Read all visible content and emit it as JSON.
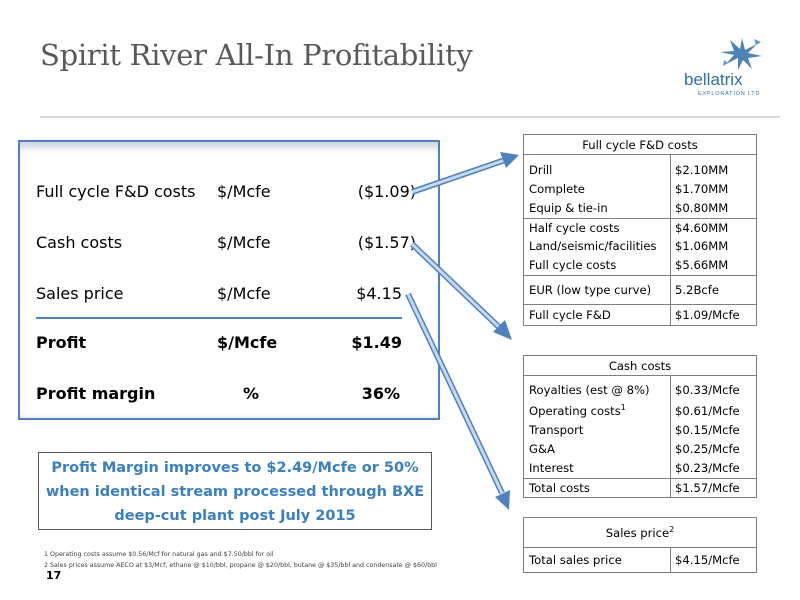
{
  "title": "Spirit River All-In Profitability",
  "logo": {
    "name": "bellatrix",
    "sub": "EXPLORATION LTD"
  },
  "summary": {
    "rows": [
      {
        "label": "Full cycle F&D costs",
        "unit": "$/Mcfe",
        "value": "($1.09)"
      },
      {
        "label": "Cash costs",
        "unit": "$/Mcfe",
        "value": "($1.57)"
      },
      {
        "label": "Sales price",
        "unit": "$/Mcfe",
        "value": "$4.15"
      }
    ],
    "profit": {
      "label": "Profit",
      "unit": "$/Mcfe",
      "value": "$1.49"
    },
    "margin": {
      "label": "Profit margin",
      "unit": "%",
      "value": "36%"
    }
  },
  "callout": {
    "line1": "Profit Margin improves to $2.49/Mcfe or 50%",
    "line2": "when identical stream processed through BXE",
    "line3": "deep-cut plant post July 2015"
  },
  "footnotes": {
    "note1": "1 Operating costs assume $0.56/Mcf for natural gas and $7.50/bbl for oil",
    "note2": "2 Sales prices assume AECO at $3/Mcf, ethane @ $10/bbl, propane @ $20/bbl, butane @ $35/bbl and condensate @ $60/bbl"
  },
  "page_number": "17",
  "fd_table": {
    "header": "Full cycle F&D costs",
    "rows": [
      {
        "k": "Drill",
        "v": "$2.10MM"
      },
      {
        "k": "Complete",
        "v": "$1.70MM"
      },
      {
        "k": "Equip & tie-in",
        "v": "$0.80MM"
      },
      {
        "k": "Half cycle costs",
        "v": "$4.60MM"
      },
      {
        "k": "Land/seismic/facilities",
        "v": "$1.06MM"
      },
      {
        "k": "Full cycle costs",
        "v": "$5.66MM"
      },
      {
        "k": "EUR (low type curve)",
        "v": "5.2Bcfe"
      },
      {
        "k": "Full cycle F&D",
        "v": "$1.09/Mcfe"
      }
    ]
  },
  "cash_table": {
    "header": "Cash costs",
    "rows": [
      {
        "k": "Royalties (est @ 8%)",
        "v": "$0.33/Mcfe"
      },
      {
        "k": "Operating costs",
        "sup": "1",
        "v": "$0.61/Mcfe"
      },
      {
        "k": "Transport",
        "v": "$0.15/Mcfe"
      },
      {
        "k": "G&A",
        "v": "$0.25/Mcfe"
      },
      {
        "k": "Interest",
        "v": "$0.23/Mcfe"
      },
      {
        "k": "Total costs",
        "v": "$1.57/Mcfe"
      }
    ]
  },
  "sales_table": {
    "header": "Sales price",
    "header_sup": "2",
    "rows": [
      {
        "k": "Total sales price",
        "v": "$4.15/Mcfe"
      }
    ]
  },
  "colors": {
    "accent": "#4f81bd",
    "callout_text": "#3a7fc1",
    "title": "#595959"
  }
}
